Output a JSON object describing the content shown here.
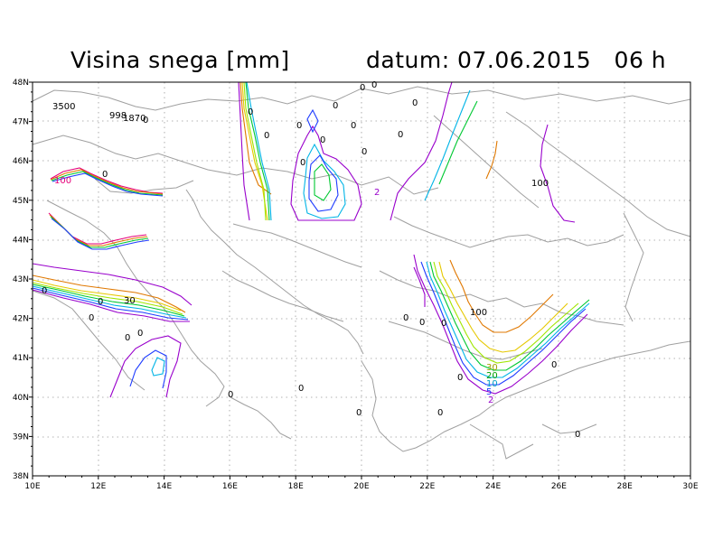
{
  "title": "Visina snega [mm]",
  "date_text": "datum: 07.06.2015   06 h",
  "x_ticks": [
    "10E",
    "12E",
    "14E",
    "16E",
    "18E",
    "20E",
    "22E",
    "24E",
    "26E",
    "28E",
    "30E"
  ],
  "y_ticks": [
    "48N",
    "47N",
    "46N",
    "45N",
    "44N",
    "43N",
    "42N",
    "41N",
    "40N",
    "39N",
    "38N"
  ],
  "contour_levels": [
    {
      "level": "2",
      "color": "#9900cc"
    },
    {
      "level": "5",
      "color": "#1e3cff"
    },
    {
      "level": "10",
      "color": "#00b4e6"
    },
    {
      "level": "20",
      "color": "#00c832"
    },
    {
      "level": "30",
      "color": "#a0e600"
    },
    {
      "level": "50",
      "color": "#e6c800"
    },
    {
      "level": "100",
      "color": "#e07800"
    },
    {
      "level": "100",
      "color": "#e6007a"
    }
  ],
  "labels": [
    {
      "text": "3500",
      "color": "#000"
    },
    {
      "text": "998",
      "color": "#000"
    },
    {
      "text": "1870",
      "color": "#000"
    },
    {
      "text": "100",
      "color": "#e6007a"
    },
    {
      "text": "30",
      "color": "#000"
    },
    {
      "text": "100",
      "color": "#000"
    },
    {
      "text": "100",
      "color": "#000"
    },
    {
      "text": "2",
      "color": "#9900cc"
    },
    {
      "text": "30",
      "color": "#a0a000"
    },
    {
      "text": "20",
      "color": "#00a000"
    },
    {
      "text": "10",
      "color": "#00a0c8"
    },
    {
      "text": "5",
      "color": "#1e3cff"
    },
    {
      "text": "2",
      "color": "#9900cc"
    }
  ],
  "zero_label": "0"
}
